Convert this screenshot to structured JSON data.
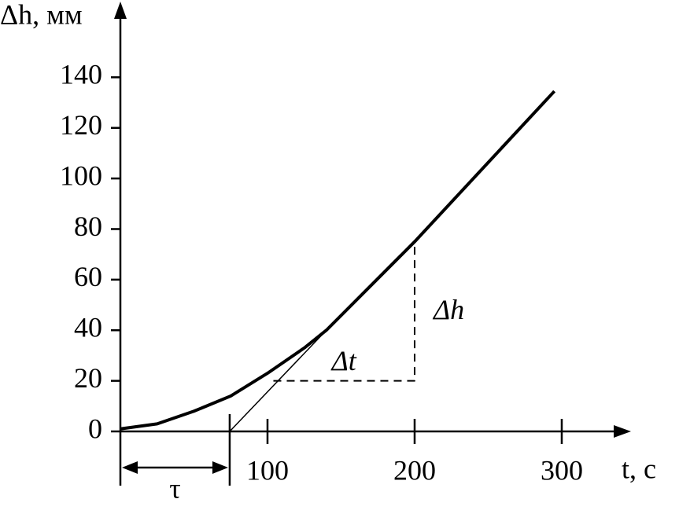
{
  "chart_data": {
    "type": "line",
    "x_label": "t, с",
    "y_label": "Δh, мм",
    "xlim": [
      0,
      346
    ],
    "ylim": [
      0,
      169
    ],
    "xticks": [
      100,
      200,
      300
    ],
    "yticks": [
      0,
      20,
      40,
      60,
      80,
      100,
      120,
      140
    ],
    "series": [
      {
        "x": [
          0,
          25,
          50,
          75,
          100,
          125,
          140,
          200,
          295
        ],
        "values": [
          1,
          3,
          8,
          14,
          23,
          33,
          40,
          75,
          134.5
        ],
        "color": "#000000",
        "line_width": 4,
        "dash": false
      },
      {
        "x": [
          74.3,
          140
        ],
        "values": [
          0,
          40
        ],
        "color": "#000000",
        "line_width": 1.5,
        "dash": false
      },
      {
        "x": [
          104,
          200,
          200
        ],
        "values": [
          20,
          20,
          74
        ],
        "color": "#000000",
        "line_width": 2,
        "dash": true
      }
    ],
    "delay": {
      "value": 74.3,
      "label": "τ"
    },
    "annotations": [
      "Δt",
      "Δh"
    ]
  }
}
